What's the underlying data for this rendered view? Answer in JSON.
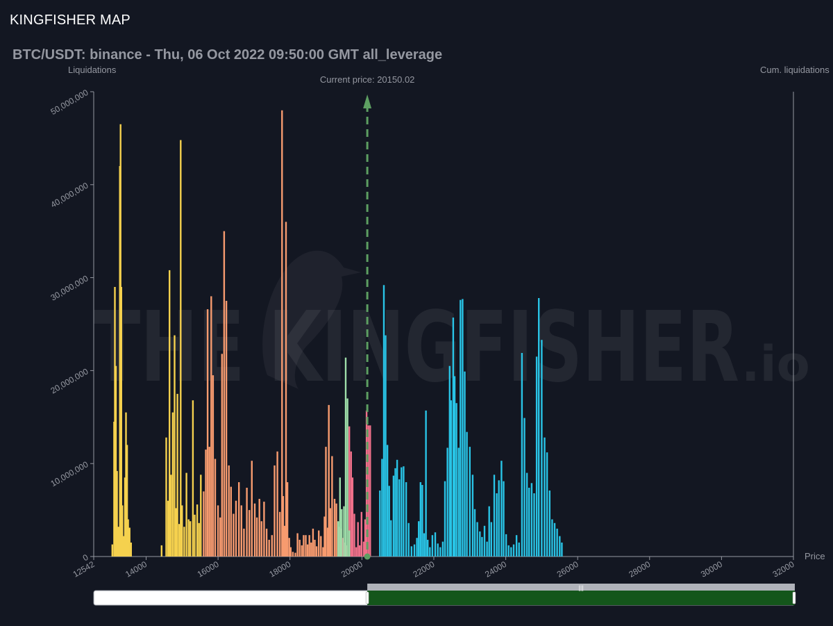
{
  "app": {
    "title": "KINGFISHER MAP"
  },
  "chart_data": {
    "type": "bar",
    "title": "BTC/USDT: binance - Thu, 06 Oct 2022 09:50:00 GMT all_leverage",
    "ylabel": "Liquidations",
    "y2label": "Cum. liquidations",
    "xlabel": "Price",
    "xlim": [
      12542,
      32000
    ],
    "ylim": [
      0,
      50000000
    ],
    "x_ticks": [
      "12542",
      "14000",
      "16000",
      "18000",
      "20000",
      "22000",
      "24000",
      "26000",
      "28000",
      "30000",
      "32000"
    ],
    "y_ticks": [
      "0",
      "10,000,000",
      "20,000,000",
      "30,000,000",
      "40,000,000",
      "50,000,000"
    ],
    "current_price": {
      "value": 20150.02,
      "label": "Current price: 20150.02"
    },
    "watermark": {
      "main": "THE KINGFISHER",
      "suffix": ".io"
    },
    "grid": false,
    "range_selector": {
      "start": 20150,
      "end": 32000
    },
    "colors": {
      "yellow": "#f5d14e",
      "orange": "#f79b6f",
      "pink": "#f0708a",
      "green": "#9fdfaa",
      "cyan": "#29c4e6",
      "current_price": "#5d9f62",
      "selector_fill": "#14561b"
    },
    "series": [
      {
        "color": "yellow",
        "values": [
          [
            13060,
            1300000
          ],
          [
            13110,
            14500000
          ],
          [
            13130,
            29000000
          ],
          [
            13160,
            20500000
          ],
          [
            13190,
            9200000
          ],
          [
            13230,
            3200000
          ],
          [
            13270,
            42000000
          ],
          [
            13290,
            46500000
          ],
          [
            13310,
            29000000
          ],
          [
            13340,
            5500000
          ],
          [
            13370,
            2200000
          ],
          [
            13410,
            8500000
          ],
          [
            13440,
            15500000
          ],
          [
            13470,
            12000000
          ],
          [
            13500,
            4000000
          ],
          [
            13540,
            3100000
          ],
          [
            13580,
            1500000
          ],
          [
            14430,
            1200000
          ],
          [
            14560,
            12800000
          ],
          [
            14610,
            6000000
          ],
          [
            14650,
            30800000
          ],
          [
            14690,
            8800000
          ],
          [
            14740,
            15500000
          ],
          [
            14790,
            23800000
          ],
          [
            14830,
            5200000
          ],
          [
            14870,
            17500000
          ],
          [
            14920,
            3500000
          ],
          [
            14960,
            44800000
          ],
          [
            15000,
            5500000
          ],
          [
            15060,
            3200000
          ],
          [
            15120,
            9000000
          ],
          [
            15180,
            4000000
          ],
          [
            15230,
            3800000
          ],
          [
            15300,
            16800000
          ],
          [
            15350,
            4500000
          ],
          [
            15420,
            5600000
          ],
          [
            15470,
            3600000
          ],
          [
            15520,
            8800000
          ]
        ]
      },
      {
        "color": "orange",
        "values": [
          [
            15600,
            7000000
          ],
          [
            15660,
            11500000
          ],
          [
            15710,
            26600000
          ],
          [
            15760,
            11800000
          ],
          [
            15810,
            28000000
          ],
          [
            15860,
            19500000
          ],
          [
            15920,
            10500000
          ],
          [
            16000,
            5500000
          ],
          [
            16060,
            4200000
          ],
          [
            16110,
            21800000
          ],
          [
            16170,
            35000000
          ],
          [
            16230,
            27500000
          ],
          [
            16300,
            9800000
          ],
          [
            16360,
            7500000
          ],
          [
            16430,
            4600000
          ],
          [
            16500,
            6000000
          ],
          [
            16580,
            8000000
          ],
          [
            16650,
            5500000
          ],
          [
            16720,
            3000000
          ],
          [
            16800,
            7400000
          ],
          [
            16870,
            5000000
          ],
          [
            16940,
            10300000
          ],
          [
            17020,
            5700000
          ],
          [
            17080,
            4200000
          ],
          [
            17150,
            6200000
          ],
          [
            17210,
            3800000
          ],
          [
            17280,
            5900000
          ],
          [
            17350,
            3000000
          ],
          [
            17420,
            1800000
          ],
          [
            17500,
            2300000
          ],
          [
            17570,
            9800000
          ],
          [
            17650,
            11300000
          ],
          [
            17720,
            4800000
          ],
          [
            17780,
            48000000
          ],
          [
            17810,
            6500000
          ],
          [
            17850,
            3300000
          ],
          [
            17890,
            36000000
          ],
          [
            17930,
            8000000
          ],
          [
            17980,
            2000000
          ],
          [
            18020,
            1000000
          ],
          [
            18080,
            500000
          ],
          [
            18150,
            400000
          ],
          [
            18210,
            2500000
          ],
          [
            18270,
            1800000
          ],
          [
            18330,
            1200000
          ],
          [
            18380,
            2300000
          ],
          [
            18440,
            2300000
          ],
          [
            18490,
            1300000
          ],
          [
            18540,
            2300000
          ],
          [
            18590,
            1500000
          ],
          [
            18640,
            3000000
          ],
          [
            18690,
            1800000
          ],
          [
            18740,
            1100000
          ],
          [
            18800,
            2800000
          ],
          [
            18860,
            2200000
          ],
          [
            18920,
            1000000
          ],
          [
            18960,
            4300000
          ],
          [
            19000,
            11800000
          ],
          [
            19050,
            3100000
          ],
          [
            19080,
            16300000
          ],
          [
            19120,
            5200000
          ],
          [
            19170,
            10800000
          ],
          [
            19240,
            6200000
          ],
          [
            19290,
            5700000
          ]
        ]
      },
      {
        "color": "pink",
        "values": [
          [
            19350,
            3200000
          ],
          [
            19410,
            3000000
          ],
          [
            19460,
            2000000
          ],
          [
            19520,
            1500000
          ],
          [
            19580,
            1200000
          ],
          [
            19650,
            14000000
          ],
          [
            19700,
            11300000
          ],
          [
            19740,
            8500000
          ],
          [
            19790,
            4600000
          ],
          [
            19840,
            1000000
          ],
          [
            19890,
            3700000
          ],
          [
            19940,
            1200000
          ],
          [
            19990,
            4800000
          ],
          [
            20050,
            1600000
          ],
          [
            20090,
            4000000
          ],
          [
            20130,
            15700000
          ],
          [
            20180,
            14100000
          ],
          [
            20230,
            14100000
          ]
        ]
      },
      {
        "color": "green",
        "values": [
          [
            19340,
            3800000
          ],
          [
            19390,
            8500000
          ],
          [
            19440,
            5100000
          ],
          [
            19500,
            5400000
          ],
          [
            19550,
            21400000
          ],
          [
            19600,
            17000000
          ],
          [
            19650,
            2800000
          ]
        ]
      },
      {
        "color": "cyan",
        "values": [
          [
            20500,
            7100000
          ],
          [
            20560,
            10500000
          ],
          [
            20610,
            29200000
          ],
          [
            20660,
            23800000
          ],
          [
            20710,
            12000000
          ],
          [
            20760,
            7600000
          ],
          [
            20810,
            3900000
          ],
          [
            20880,
            8700000
          ],
          [
            20930,
            9500000
          ],
          [
            20980,
            10400000
          ],
          [
            21040,
            8300000
          ],
          [
            21100,
            9600000
          ],
          [
            21160,
            9700000
          ],
          [
            21230,
            8000000
          ],
          [
            21300,
            3600000
          ],
          [
            21380,
            1100000
          ],
          [
            21460,
            1300000
          ],
          [
            21530,
            2000000
          ],
          [
            21580,
            3800000
          ],
          [
            21630,
            8000000
          ],
          [
            21680,
            7700000
          ],
          [
            21730,
            2500000
          ],
          [
            21780,
            15700000
          ],
          [
            21830,
            1800000
          ],
          [
            21890,
            1000000
          ],
          [
            21960,
            2300000
          ],
          [
            22040,
            2600000
          ],
          [
            22110,
            1400000
          ],
          [
            22180,
            1000000
          ],
          [
            22250,
            1600000
          ],
          [
            22310,
            8100000
          ],
          [
            22380,
            11700000
          ],
          [
            22440,
            20500000
          ],
          [
            22480,
            16800000
          ],
          [
            22540,
            25700000
          ],
          [
            22580,
            19400000
          ],
          [
            22630,
            16500000
          ],
          [
            22690,
            11700000
          ],
          [
            22740,
            27600000
          ],
          [
            22800,
            27700000
          ],
          [
            22860,
            19900000
          ],
          [
            22920,
            13400000
          ],
          [
            23000,
            11800000
          ],
          [
            23080,
            8800000
          ],
          [
            23140,
            5100000
          ],
          [
            23210,
            3700000
          ],
          [
            23280,
            2700000
          ],
          [
            23340,
            2100000
          ],
          [
            23410,
            3300000
          ],
          [
            23480,
            1600000
          ],
          [
            23540,
            5400000
          ],
          [
            23600,
            3700000
          ],
          [
            23680,
            8800000
          ],
          [
            23750,
            6800000
          ],
          [
            23810,
            8200000
          ],
          [
            23880,
            10300000
          ],
          [
            23940,
            8100000
          ],
          [
            24010,
            2400000
          ],
          [
            24080,
            1200000
          ],
          [
            24150,
            1000000
          ],
          [
            24220,
            1300000
          ],
          [
            24300,
            2300000
          ],
          [
            24370,
            1500000
          ],
          [
            24450,
            21900000
          ],
          [
            24520,
            14900000
          ],
          [
            24590,
            9000000
          ],
          [
            24650,
            7400000
          ],
          [
            24720,
            7900000
          ],
          [
            24790,
            6800000
          ],
          [
            24860,
            21500000
          ],
          [
            24920,
            27800000
          ],
          [
            25000,
            23300000
          ],
          [
            25080,
            12800000
          ],
          [
            25150,
            11200000
          ],
          [
            25220,
            7100000
          ],
          [
            25290,
            4000000
          ],
          [
            25360,
            3600000
          ],
          [
            25430,
            3000000
          ],
          [
            25500,
            2200000
          ],
          [
            25560,
            1500000
          ]
        ]
      }
    ]
  }
}
